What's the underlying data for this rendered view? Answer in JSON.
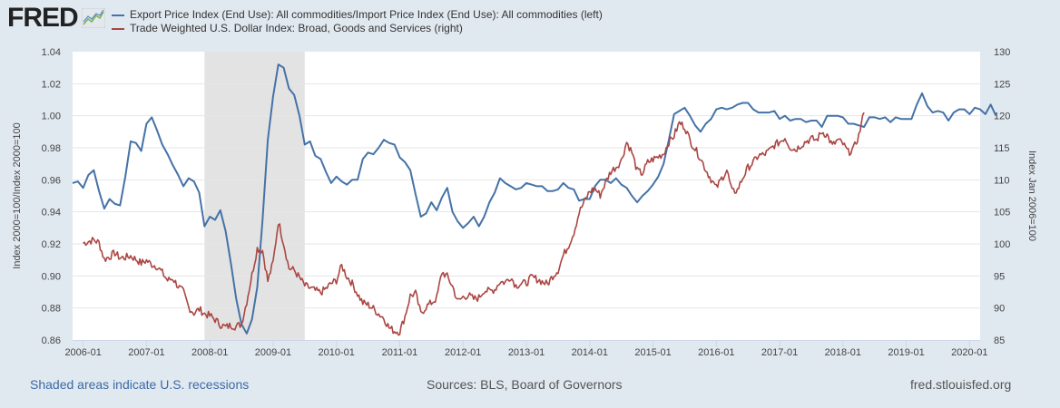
{
  "logo": {
    "text": "FRED",
    "icon": "line-chart-icon"
  },
  "colors": {
    "series1": "#4572a7",
    "series2": "#aa4643",
    "recession": "#e3e3e3",
    "background": "#e1e9f0",
    "plot": "#ffffff",
    "grid": "#e6e6e6"
  },
  "chart_data": {
    "type": "line",
    "title": "",
    "legend_placement": "top-left",
    "xlabel": "",
    "ylabel_left": "Index 2000=100/Index 2000=100",
    "ylabel_right": "Index Jan 2006=100",
    "x_ticks": [
      "2006-01",
      "2007-01",
      "2008-01",
      "2009-01",
      "2010-01",
      "2011-01",
      "2012-01",
      "2013-01",
      "2014-01",
      "2015-01",
      "2016-01",
      "2017-01",
      "2018-01",
      "2019-01",
      "2020-01"
    ],
    "y_left_ticks": [
      "0.86",
      "0.88",
      "0.90",
      "0.92",
      "0.94",
      "0.96",
      "0.98",
      "1.00",
      "1.02",
      "1.04"
    ],
    "y_right_ticks": [
      "85",
      "90",
      "95",
      "100",
      "105",
      "110",
      "115",
      "120",
      "125",
      "130"
    ],
    "ylim_left": [
      0.86,
      1.04
    ],
    "ylim_right": [
      85,
      130
    ],
    "xlim": [
      "2005-11",
      "2020-03"
    ],
    "grid": true,
    "recessions": [
      {
        "start": "2007-12",
        "end": "2009-06"
      }
    ],
    "series": [
      {
        "name": "Export Price Index (End Use): All commodities/Import Price Index (End Use): All commodities (left)",
        "axis": "left",
        "start": "2005-11",
        "frequency": "monthly",
        "values": [
          0.958,
          0.959,
          0.955,
          0.963,
          0.966,
          0.953,
          0.942,
          0.948,
          0.945,
          0.944,
          0.962,
          0.984,
          0.983,
          0.978,
          0.995,
          0.999,
          0.991,
          0.982,
          0.976,
          0.969,
          0.963,
          0.956,
          0.961,
          0.959,
          0.952,
          0.931,
          0.937,
          0.935,
          0.941,
          0.928,
          0.908,
          0.886,
          0.87,
          0.864,
          0.873,
          0.893,
          0.935,
          0.985,
          1.012,
          1.032,
          1.03,
          1.017,
          1.013,
          1.0,
          0.982,
          0.984,
          0.975,
          0.973,
          0.965,
          0.958,
          0.962,
          0.959,
          0.957,
          0.96,
          0.96,
          0.973,
          0.977,
          0.976,
          0.98,
          0.985,
          0.983,
          0.982,
          0.974,
          0.971,
          0.966,
          0.951,
          0.937,
          0.939,
          0.946,
          0.941,
          0.949,
          0.955,
          0.94,
          0.934,
          0.93,
          0.933,
          0.937,
          0.931,
          0.937,
          0.946,
          0.952,
          0.961,
          0.958,
          0.956,
          0.954,
          0.955,
          0.958,
          0.957,
          0.956,
          0.956,
          0.953,
          0.953,
          0.954,
          0.958,
          0.955,
          0.954,
          0.947,
          0.948,
          0.948,
          0.956,
          0.96,
          0.96,
          0.958,
          0.961,
          0.957,
          0.955,
          0.95,
          0.946,
          0.95,
          0.953,
          0.957,
          0.962,
          0.97,
          0.985,
          1.001,
          1.003,
          1.005,
          1.0,
          0.994,
          0.99,
          0.995,
          0.998,
          1.004,
          1.005,
          1.004,
          1.005,
          1.007,
          1.008,
          1.008,
          1.004,
          1.002,
          1.002,
          1.002,
          1.003,
          0.998,
          1.0,
          0.997,
          0.998,
          0.998,
          0.996,
          0.997,
          0.997,
          0.993,
          1.0,
          1.0,
          1.0,
          0.999,
          0.995,
          0.995,
          0.994,
          0.993,
          0.999,
          0.999,
          0.998,
          0.999,
          0.996,
          0.999,
          0.998,
          0.998,
          0.998,
          1.007,
          1.014,
          1.006,
          1.002,
          1.003,
          1.002,
          0.997,
          1.002,
          1.004,
          1.004,
          1.001,
          1.005,
          1.004,
          1.001,
          1.007,
          1.0
        ]
      },
      {
        "name": "Trade Weighted U.S. Dollar Index: Broad, Goods and Services (right)",
        "axis": "right",
        "start": "2006-01",
        "frequency": "weekly",
        "monthly_values": [
          100.1,
          100.4,
          100.6,
          100.2,
          97.6,
          98.0,
          98.6,
          97.8,
          97.9,
          98.1,
          97.6,
          97.0,
          97.4,
          96.8,
          96.5,
          95.5,
          94.3,
          94.6,
          93.4,
          92.5,
          90.1,
          89.2,
          89.8,
          89.1,
          88.8,
          88.2,
          87.4,
          87.0,
          87.3,
          87.1,
          87.5,
          91.0,
          95.2,
          99.3,
          99.0,
          94.2,
          97.1,
          103.5,
          100.1,
          96.2,
          95.9,
          94.7,
          93.5,
          93.1,
          92.7,
          92.4,
          93.0,
          93.8,
          94.3,
          96.6,
          94.9,
          93.8,
          92.2,
          90.8,
          90.5,
          89.9,
          89.1,
          88.4,
          86.9,
          86.4,
          86.3,
          88.7,
          91.9,
          92.3,
          89.1,
          90.2,
          90.8,
          91.5,
          95.6,
          94.9,
          93.4,
          91.0,
          91.7,
          92.0,
          91.4,
          91.6,
          92.8,
          92.6,
          92.9,
          94.1,
          94.0,
          94.9,
          93.5,
          93.8,
          93.9,
          94.8,
          94.5,
          94.1,
          93.7,
          95.0,
          95.9,
          98.2,
          99.8,
          101.8,
          104.9,
          106.6,
          108.2,
          108.6,
          107.6,
          109.6,
          111.3,
          112.0,
          113.0,
          115.9,
          114.3,
          111.4,
          111.0,
          112.7,
          113.2,
          113.6,
          114.1,
          115.9,
          116.9,
          118.9,
          118.3,
          116.2,
          114.8,
          113.4,
          111.6,
          110.1,
          108.7,
          110.2,
          111.5,
          108.1,
          108.4,
          110.3,
          111.9,
          112.7,
          113.8,
          113.9,
          114.5,
          115.4,
          115.9,
          116.6,
          115.1,
          114.7,
          115.4,
          116.0,
          116.4,
          116.2,
          117.5,
          117.0,
          115.3,
          116.2,
          115.6,
          114.3,
          114.8,
          116.9,
          120.5
        ]
      }
    ]
  },
  "footer": {
    "recession_note": "Shaded areas indicate U.S. recessions",
    "sources": "Sources: BLS, Board of Governors",
    "site": "fred.stlouisfed.org"
  }
}
